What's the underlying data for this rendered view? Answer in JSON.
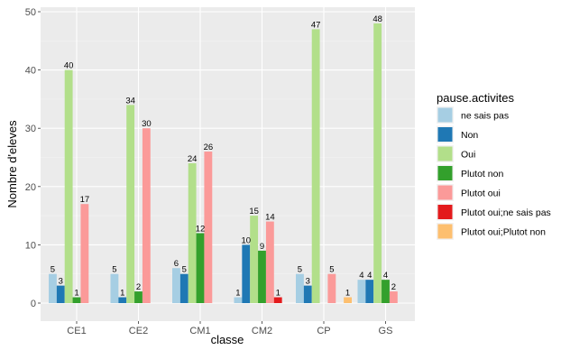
{
  "chart_data": {
    "type": "bar",
    "xlabel": "classe",
    "ylabel": "Nombre d'eleves",
    "ylim": [
      0,
      50
    ],
    "yticks": [
      0,
      10,
      20,
      30,
      40,
      50
    ],
    "grid": true,
    "categories": [
      "CE1",
      "CE2",
      "CM1",
      "CM2",
      "CP",
      "GS"
    ],
    "legend": {
      "title": "pause.activites",
      "placement": "right"
    },
    "series": [
      {
        "name": "ne sais pas",
        "color": "#A6CEE3",
        "values": [
          5,
          5,
          6,
          1,
          5,
          4
        ]
      },
      {
        "name": "Non",
        "color": "#1F78B4",
        "values": [
          3,
          1,
          5,
          10,
          3,
          4
        ]
      },
      {
        "name": "Oui",
        "color": "#B2DF8A",
        "values": [
          40,
          34,
          24,
          15,
          47,
          48
        ]
      },
      {
        "name": "Plutot non",
        "color": "#33A02C",
        "values": [
          1,
          2,
          12,
          9,
          null,
          4
        ]
      },
      {
        "name": "Plutot oui",
        "color": "#FB9A99",
        "values": [
          17,
          30,
          26,
          14,
          5,
          2
        ]
      },
      {
        "name": "Plutot oui;ne sais pas",
        "color": "#E31A1C",
        "values": [
          null,
          null,
          null,
          1,
          null,
          null
        ]
      },
      {
        "name": "Plutot oui;Plutot non",
        "color": "#FDBF6F",
        "values": [
          null,
          null,
          null,
          null,
          1,
          null
        ]
      }
    ]
  }
}
